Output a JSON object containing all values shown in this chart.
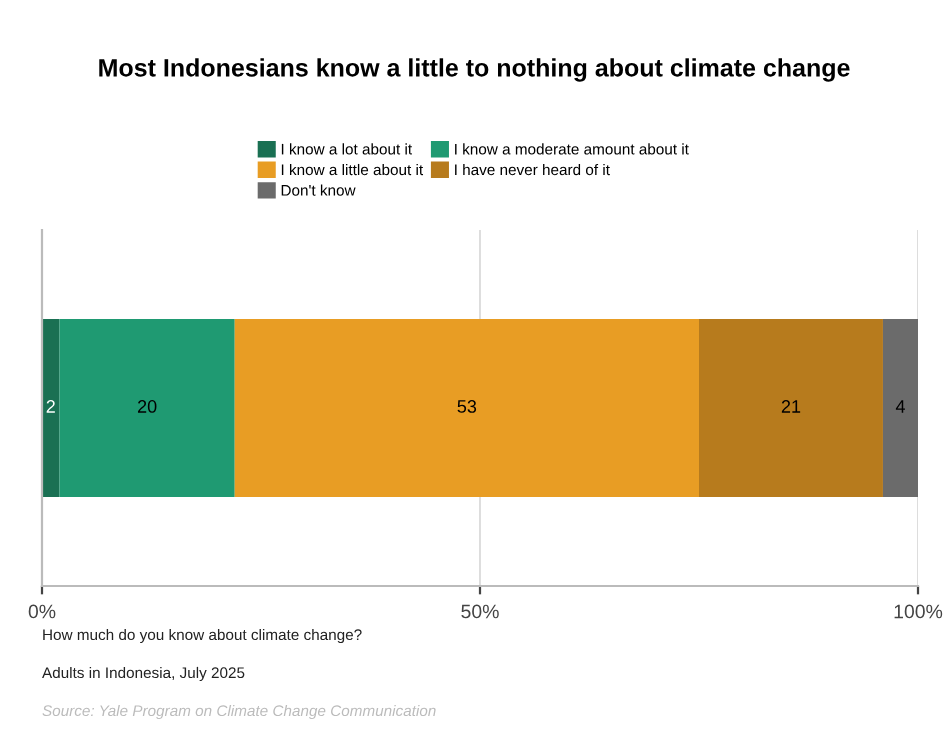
{
  "chart_data": {
    "type": "bar",
    "orientation": "horizontal",
    "stacked": true,
    "title": "Most Indonesians know a little to nothing about climate change",
    "categories": [
      null
    ],
    "series": [
      {
        "name": "I know a lot about it",
        "color": "#1a7053",
        "values": [
          2
        ]
      },
      {
        "name": "I know a moderate amount about it",
        "color": "#1f9a72",
        "values": [
          20
        ]
      },
      {
        "name": "I know a little about it",
        "color": "#e89d24",
        "values": [
          53
        ]
      },
      {
        "name": "I have never heard of it",
        "color": "#b77b1d",
        "values": [
          21
        ]
      },
      {
        "name": "Don't know",
        "color": "#6b6b6b",
        "values": [
          4
        ]
      }
    ],
    "xlim": [
      0,
      100
    ],
    "xticks": [
      {
        "value": 0,
        "label": "0%"
      },
      {
        "value": 50,
        "label": "50%"
      },
      {
        "value": 100,
        "label": "100%"
      }
    ],
    "grid": "x",
    "legend": "top",
    "data_labels": true,
    "tick_labels": "x",
    "annotations": [
      "How much do you know about climate change?",
      "Adults in Indonesia, July 2025",
      "Source: Yale Program on Climate Change Communication"
    ]
  }
}
